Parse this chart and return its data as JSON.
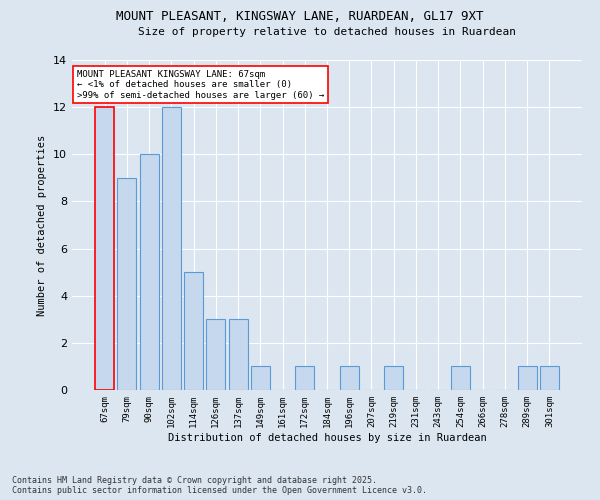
{
  "title1": "MOUNT PLEASANT, KINGSWAY LANE, RUARDEAN, GL17 9XT",
  "title2": "Size of property relative to detached houses in Ruardean",
  "xlabel": "Distribution of detached houses by size in Ruardean",
  "ylabel": "Number of detached properties",
  "categories": [
    "67sqm",
    "79sqm",
    "90sqm",
    "102sqm",
    "114sqm",
    "126sqm",
    "137sqm",
    "149sqm",
    "161sqm",
    "172sqm",
    "184sqm",
    "196sqm",
    "207sqm",
    "219sqm",
    "231sqm",
    "243sqm",
    "254sqm",
    "266sqm",
    "278sqm",
    "289sqm",
    "301sqm"
  ],
  "values": [
    12,
    9,
    10,
    12,
    5,
    3,
    3,
    1,
    0,
    1,
    0,
    1,
    0,
    1,
    0,
    0,
    1,
    0,
    0,
    1,
    1
  ],
  "bar_color": "#c5d8ed",
  "bar_edge_color": "#5b9bd5",
  "highlight_bar_index": 0,
  "highlight_color": "#ff0000",
  "annotation_title": "MOUNT PLEASANT KINGSWAY LANE: 67sqm",
  "annotation_line1": "← <1% of detached houses are smaller (0)",
  "annotation_line2": ">99% of semi-detached houses are larger (60) →",
  "ylim": [
    0,
    14
  ],
  "yticks": [
    0,
    2,
    4,
    6,
    8,
    10,
    12,
    14
  ],
  "footnote1": "Contains HM Land Registry data © Crown copyright and database right 2025.",
  "footnote2": "Contains public sector information licensed under the Open Government Licence v3.0.",
  "bg_color": "#dce6f1",
  "plot_bg_color": "#dce6f1"
}
